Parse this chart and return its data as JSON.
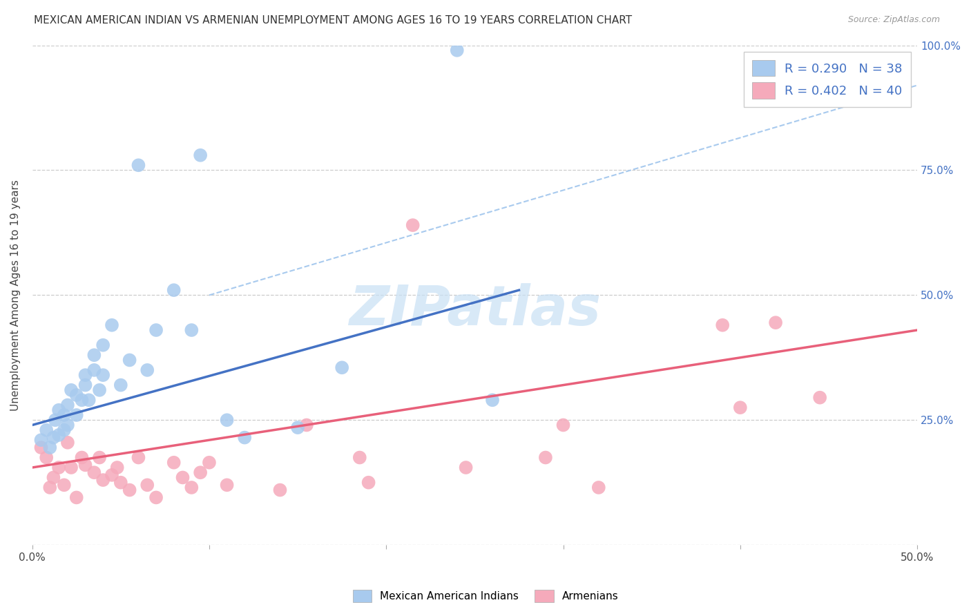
{
  "title": "MEXICAN AMERICAN INDIAN VS ARMENIAN UNEMPLOYMENT AMONG AGES 16 TO 19 YEARS CORRELATION CHART",
  "source": "Source: ZipAtlas.com",
  "ylabel": "Unemployment Among Ages 16 to 19 years",
  "xlim": [
    0.0,
    0.5
  ],
  "ylim": [
    0.0,
    1.0
  ],
  "xtick_positions": [
    0.0,
    0.1,
    0.2,
    0.3,
    0.4,
    0.5
  ],
  "xticklabels": [
    "0.0%",
    "",
    "",
    "",
    "",
    "50.0%"
  ],
  "ytick_positions": [
    0.0,
    0.25,
    0.5,
    0.75,
    1.0
  ],
  "yticklabels_right": [
    "",
    "25.0%",
    "50.0%",
    "75.0%",
    "100.0%"
  ],
  "legend_labels": [
    "Mexican American Indians",
    "Armenians"
  ],
  "legend_R": [
    "R = 0.290",
    "R = 0.402"
  ],
  "legend_N": [
    "N = 38",
    "N = 40"
  ],
  "blue_color": "#A8CAEE",
  "pink_color": "#F5AABB",
  "blue_line_color": "#4472C4",
  "pink_line_color": "#E8607A",
  "dashed_line_color": "#A8CAEE",
  "watermark_text": "ZIPatlas",
  "watermark_color": "#C8E0F5",
  "blue_scatter_x": [
    0.005,
    0.008,
    0.01,
    0.012,
    0.013,
    0.015,
    0.015,
    0.018,
    0.018,
    0.02,
    0.02,
    0.022,
    0.025,
    0.025,
    0.028,
    0.03,
    0.03,
    0.032,
    0.035,
    0.035,
    0.038,
    0.04,
    0.04,
    0.045,
    0.05,
    0.055,
    0.06,
    0.065,
    0.07,
    0.08,
    0.09,
    0.095,
    0.11,
    0.12,
    0.15,
    0.175,
    0.24,
    0.26
  ],
  "blue_scatter_y": [
    0.21,
    0.23,
    0.195,
    0.215,
    0.25,
    0.27,
    0.22,
    0.23,
    0.26,
    0.24,
    0.28,
    0.31,
    0.26,
    0.3,
    0.29,
    0.32,
    0.34,
    0.29,
    0.35,
    0.38,
    0.31,
    0.34,
    0.4,
    0.44,
    0.32,
    0.37,
    0.76,
    0.35,
    0.43,
    0.51,
    0.43,
    0.78,
    0.25,
    0.215,
    0.235,
    0.355,
    0.99,
    0.29
  ],
  "pink_scatter_x": [
    0.005,
    0.008,
    0.01,
    0.012,
    0.015,
    0.018,
    0.02,
    0.022,
    0.025,
    0.028,
    0.03,
    0.035,
    0.038,
    0.04,
    0.045,
    0.048,
    0.05,
    0.055,
    0.06,
    0.065,
    0.07,
    0.08,
    0.085,
    0.09,
    0.095,
    0.1,
    0.11,
    0.14,
    0.155,
    0.185,
    0.19,
    0.215,
    0.245,
    0.29,
    0.3,
    0.32,
    0.39,
    0.4,
    0.42,
    0.445
  ],
  "pink_scatter_y": [
    0.195,
    0.175,
    0.115,
    0.135,
    0.155,
    0.12,
    0.205,
    0.155,
    0.095,
    0.175,
    0.16,
    0.145,
    0.175,
    0.13,
    0.14,
    0.155,
    0.125,
    0.11,
    0.175,
    0.12,
    0.095,
    0.165,
    0.135,
    0.115,
    0.145,
    0.165,
    0.12,
    0.11,
    0.24,
    0.175,
    0.125,
    0.64,
    0.155,
    0.175,
    0.24,
    0.115,
    0.44,
    0.275,
    0.445,
    0.295
  ],
  "blue_trend_x": [
    0.0,
    0.275
  ],
  "blue_trend_y": [
    0.24,
    0.51
  ],
  "pink_trend_x": [
    0.0,
    0.5
  ],
  "pink_trend_y": [
    0.155,
    0.43
  ],
  "dashed_trend_x": [
    0.1,
    0.5
  ],
  "dashed_trend_y": [
    0.5,
    0.92
  ]
}
